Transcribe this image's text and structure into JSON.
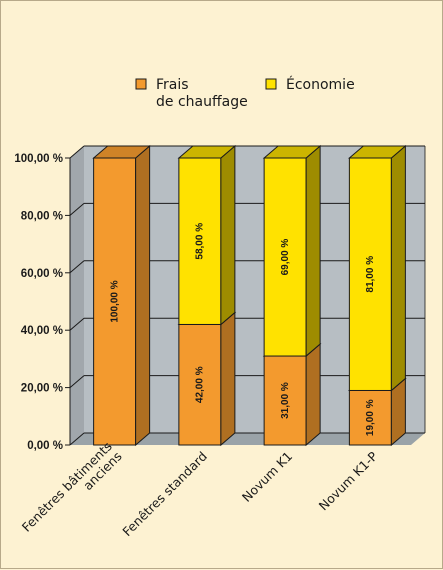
{
  "chart_data": {
    "type": "bar",
    "stacked": true,
    "three_d": true,
    "categories": [
      "Fenêtres bâtiments anciens",
      "Fenêtres standard",
      "Novum K1",
      "Novum K1-P"
    ],
    "category_lines": [
      [
        "Fenêtres bâtiments",
        "anciens"
      ],
      [
        "Fenêtres standard"
      ],
      [
        "Novum K1"
      ],
      [
        "Novum K1-P"
      ]
    ],
    "series": [
      {
        "name": "Frais de chauffage",
        "name_lines": [
          "Frais",
          "de chauffage"
        ],
        "values": [
          100,
          42,
          31,
          19
        ],
        "color": "#f39a2e"
      },
      {
        "name": "Économie",
        "name_lines": [
          "Économie"
        ],
        "values": [
          0,
          58,
          69,
          81
        ],
        "color": "#ffe200"
      }
    ],
    "data_labels": [
      [
        "100,00 %",
        "42,00 %",
        "31,00 %",
        "19,00 %"
      ],
      [
        "",
        "58,00 %",
        "69,00 %",
        "81,00 %"
      ]
    ],
    "y_ticks": [
      "0,00 %",
      "20,00 %",
      "40,00 %",
      "60,00 %",
      "80,00 %",
      "100,00 %"
    ],
    "ylim": [
      0,
      100
    ],
    "grid": true,
    "legend_position": "top",
    "colors": {
      "background": "#fdf2d2",
      "wall": "#b7bec3",
      "floor": "#9aa3a8",
      "heating": "#f39a2e",
      "saving": "#ffe200"
    }
  }
}
